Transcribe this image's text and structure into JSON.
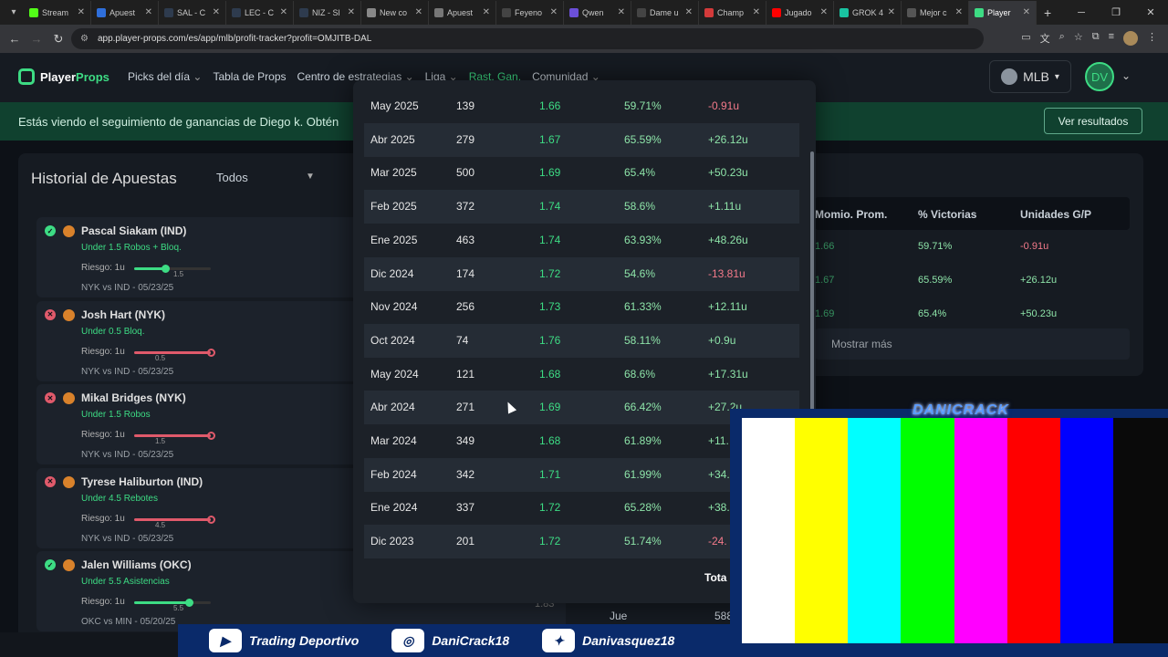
{
  "browser": {
    "tabs": [
      {
        "label": "Stream",
        "color": "#53fc18"
      },
      {
        "label": "Apuest",
        "color": "#2f6fdb"
      },
      {
        "label": "SAL - C",
        "color": "#2e3b4e"
      },
      {
        "label": "LEC - C",
        "color": "#2e3b4e"
      },
      {
        "label": "NIZ - Sl",
        "color": "#2e3b4e"
      },
      {
        "label": "New co",
        "color": "#888888"
      },
      {
        "label": "Apuest",
        "color": "#777777"
      },
      {
        "label": "Feyeno",
        "color": "#444444"
      },
      {
        "label": "Qwen",
        "color": "#6b4fd8"
      },
      {
        "label": "Dame u",
        "color": "#444444"
      },
      {
        "label": "Champ",
        "color": "#d33a3a"
      },
      {
        "label": "Jugado",
        "color": "#ff0000"
      },
      {
        "label": "GROK 4",
        "color": "#19c3a1"
      },
      {
        "label": "Mejor c",
        "color": "#555555"
      },
      {
        "label": "Player",
        "color": "#3ddc84",
        "active": true
      }
    ],
    "url": "app.player-props.com/es/app/mlb/profit-tracker?profit=OMJITB-DAL"
  },
  "header": {
    "logo_a": "Player",
    "logo_b": "Props",
    "nav": [
      {
        "label": "Picks del día",
        "chevron": true
      },
      {
        "label": "Tabla de Props",
        "chevron": false
      },
      {
        "label": "Centro de estrategias",
        "chevron": true
      },
      {
        "label": "Liga",
        "chevron": true
      },
      {
        "label": "Rast. Gan.",
        "chevron": false,
        "selected": true
      },
      {
        "label": "Comunidad",
        "chevron": true
      }
    ],
    "sport": "MLB",
    "user_initials": "DV"
  },
  "banner": {
    "text": "Estás viendo el seguimiento de ganancias de Diego k. Obtén",
    "button": "Ver resultados"
  },
  "history": {
    "title": "Historial de Apuestas",
    "filter": "Todos",
    "bets": [
      {
        "result": "win",
        "player": "Pascal Siakam (IND)",
        "market": "Under 1.5 Robos + Bloq.",
        "risk": "Riesgo: 1u",
        "line": "1.5",
        "game": "NYK vs IND - 05/23/25",
        "level": 0.4
      },
      {
        "result": "loss",
        "player": "Josh Hart (NYK)",
        "market": "Under 0.5 Bloq.",
        "risk": "Riesgo: 1u",
        "line": "0.5",
        "game": "NYK vs IND - 05/23/25",
        "level": 1.0
      },
      {
        "result": "loss",
        "player": "Mikal Bridges (NYK)",
        "market": "Under 1.5 Robos",
        "risk": "Riesgo: 1u",
        "line": "1.5",
        "game": "NYK vs IND - 05/23/25",
        "level": 1.0
      },
      {
        "result": "loss",
        "player": "Tyrese Haliburton (IND)",
        "market": "Under 4.5 Rebotes",
        "risk": "Riesgo: 1u",
        "line": "4.5",
        "game": "NYK vs IND - 05/23/25",
        "level": 1.0
      },
      {
        "result": "win",
        "player": "Jalen Williams (OKC)",
        "market": "Under 5.5 Asistencias",
        "risk": "Riesgo: 1u",
        "line": "5.5",
        "game": "OKC vs MIN - 05/20/25",
        "level": 0.72
      }
    ],
    "odds_fragment": "1.83"
  },
  "summary_card": {
    "headers": [
      "Momio. Prom.",
      "% Victorias",
      "Unidades G/P"
    ],
    "rows": [
      {
        "odds": "1.66",
        "pct": "59.71%",
        "units": "-0.91u",
        "sign": "neg"
      },
      {
        "odds": "1.67",
        "pct": "65.59%",
        "units": "+26.12u",
        "sign": "pos"
      },
      {
        "odds": "1.69",
        "pct": "65.4%",
        "units": "+50.23u",
        "sign": "pos"
      }
    ],
    "more": "Mostrar más"
  },
  "weekday_card": {
    "day": "Jue",
    "value": "588"
  },
  "monthly_table": {
    "rows": [
      {
        "month": "May 2025",
        "count": "139",
        "odds": "1.66",
        "pct": "59.71%",
        "units": "-0.91u",
        "sign": "neg"
      },
      {
        "month": "Abr 2025",
        "count": "279",
        "odds": "1.67",
        "pct": "65.59%",
        "units": "+26.12u",
        "sign": "pos"
      },
      {
        "month": "Mar 2025",
        "count": "500",
        "odds": "1.69",
        "pct": "65.4%",
        "units": "+50.23u",
        "sign": "pos"
      },
      {
        "month": "Feb 2025",
        "count": "372",
        "odds": "1.74",
        "pct": "58.6%",
        "units": "+1.11u",
        "sign": "pos"
      },
      {
        "month": "Ene 2025",
        "count": "463",
        "odds": "1.74",
        "pct": "63.93%",
        "units": "+48.26u",
        "sign": "pos"
      },
      {
        "month": "Dic 2024",
        "count": "174",
        "odds": "1.72",
        "pct": "54.6%",
        "units": "-13.81u",
        "sign": "neg"
      },
      {
        "month": "Nov 2024",
        "count": "256",
        "odds": "1.73",
        "pct": "61.33%",
        "units": "+12.11u",
        "sign": "pos"
      },
      {
        "month": "Oct 2024",
        "count": "74",
        "odds": "1.76",
        "pct": "58.11%",
        "units": "+0.9u",
        "sign": "pos"
      },
      {
        "month": "May 2024",
        "count": "121",
        "odds": "1.68",
        "pct": "68.6%",
        "units": "+17.31u",
        "sign": "pos"
      },
      {
        "month": "Abr 2024",
        "count": "271",
        "odds": "1.69",
        "pct": "66.42%",
        "units": "+27.2u",
        "sign": "pos"
      },
      {
        "month": "Mar 2024",
        "count": "349",
        "odds": "1.68",
        "pct": "61.89%",
        "units": "+11.",
        "sign": "pos"
      },
      {
        "month": "Feb 2024",
        "count": "342",
        "odds": "1.71",
        "pct": "61.99%",
        "units": "+34.",
        "sign": "pos"
      },
      {
        "month": "Ene 2024",
        "count": "337",
        "odds": "1.72",
        "pct": "65.28%",
        "units": "+38.",
        "sign": "pos"
      },
      {
        "month": "Dic 2023",
        "count": "201",
        "odds": "1.72",
        "pct": "51.74%",
        "units": "-24.",
        "sign": "neg"
      }
    ],
    "total_label": "Tota"
  },
  "stream_overlay": {
    "brand": "DANICRACK",
    "color_bars": [
      "#ffffff",
      "#ffff00",
      "#00ffff",
      "#00ff00",
      "#ff00ff",
      "#ff0000",
      "#0000ff"
    ],
    "socials": [
      {
        "icon": "youtube-icon",
        "handle": "Trading Deportivo"
      },
      {
        "icon": "instagram-icon",
        "handle": "DaniCrack18"
      },
      {
        "icon": "twitter-icon",
        "handle": "Danivasquez18"
      }
    ]
  }
}
